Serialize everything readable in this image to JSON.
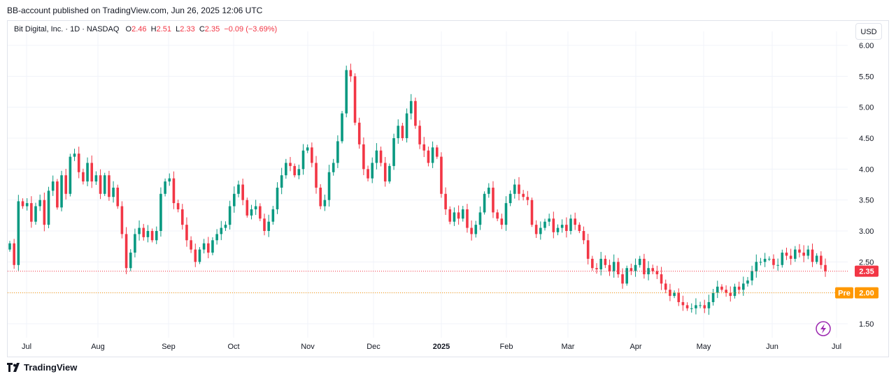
{
  "header": {
    "published": "BB-account published on TradingView.com, Jun 26, 2025 12:06 UTC"
  },
  "legend": {
    "symbol": "Bit Digital, Inc. · 1D · NASDAQ",
    "o_label": "O",
    "o_value": "2.46",
    "h_label": "H",
    "h_value": "2.51",
    "l_label": "L",
    "l_value": "2.33",
    "c_label": "C",
    "c_value": "2.35",
    "change": "−0.09 (−3.69%)"
  },
  "toolbar": {
    "currency": "USD"
  },
  "footer": {
    "brand": "TradingView"
  },
  "colors": {
    "up": "#089981",
    "down": "#f23645",
    "pre": "#ff9800",
    "grid": "#f0f3fa"
  },
  "chart_data": {
    "type": "candlestick",
    "y_axis": {
      "side": "right",
      "ticks": [
        1.5,
        2.0,
        2.5,
        3.0,
        3.5,
        4.0,
        4.5,
        5.0,
        5.5,
        6.0
      ],
      "tick_labels": [
        "1.50",
        "2.00",
        "2.50",
        "3.00",
        "3.50",
        "4.00",
        "4.50",
        "5.00",
        "5.50",
        "6.00"
      ],
      "range": [
        1.3,
        6.3
      ]
    },
    "x_axis": {
      "labels": [
        "Jul",
        "Aug",
        "Sep",
        "Oct",
        "Nov",
        "Dec",
        "2025",
        "Feb",
        "Mar",
        "Apr",
        "May",
        "Jun",
        "Jul"
      ],
      "bold": [
        "2025"
      ]
    },
    "last_price": {
      "value": 2.35,
      "label": "2.35"
    },
    "pre_market": {
      "value": 2.0,
      "tag": "Pre",
      "label": "2.00"
    },
    "closes": [
      2.8,
      2.45,
      3.48,
      3.4,
      3.45,
      3.15,
      3.4,
      3.5,
      3.1,
      3.65,
      3.8,
      3.38,
      3.9,
      3.6,
      4.2,
      4.25,
      3.95,
      3.8,
      4.1,
      3.8,
      3.9,
      3.6,
      3.9,
      3.55,
      3.7,
      3.4,
      2.95,
      2.4,
      2.65,
      2.95,
      3.05,
      2.9,
      3.0,
      2.85,
      3.0,
      3.6,
      3.8,
      3.85,
      3.45,
      3.35,
      3.1,
      2.85,
      2.7,
      2.5,
      2.7,
      2.8,
      2.65,
      2.85,
      2.95,
      3.05,
      3.1,
      3.4,
      3.6,
      3.75,
      3.5,
      3.25,
      3.35,
      3.4,
      3.2,
      3.0,
      3.15,
      3.35,
      3.7,
      3.9,
      4.1,
      4.05,
      3.9,
      4.0,
      4.3,
      4.35,
      4.1,
      3.7,
      3.4,
      3.5,
      3.95,
      4.1,
      4.45,
      4.9,
      5.6,
      5.5,
      4.75,
      4.4,
      4.0,
      3.85,
      4.1,
      4.3,
      4.1,
      3.8,
      4.05,
      4.5,
      4.7,
      4.5,
      4.9,
      5.1,
      4.7,
      4.4,
      4.3,
      4.1,
      4.35,
      4.2,
      3.6,
      3.35,
      3.15,
      3.3,
      3.2,
      3.35,
      3.05,
      2.95,
      3.1,
      3.3,
      3.6,
      3.7,
      3.3,
      3.2,
      3.1,
      3.45,
      3.6,
      3.75,
      3.6,
      3.55,
      3.5,
      3.1,
      2.95,
      3.05,
      3.15,
      3.2,
      2.98,
      3.05,
      3.1,
      3.0,
      3.2,
      3.1,
      3.0,
      2.85,
      2.55,
      2.4,
      2.38,
      2.55,
      2.45,
      2.35,
      2.5,
      2.3,
      2.15,
      2.4,
      2.35,
      2.45,
      2.55,
      2.3,
      2.4,
      2.35,
      2.3,
      2.15,
      2.05,
      1.95,
      2.0,
      1.85,
      1.8,
      1.75,
      1.75,
      1.8,
      1.8,
      1.75,
      1.85,
      2.0,
      2.1,
      2.05,
      2.0,
      1.95,
      2.1,
      2.05,
      2.15,
      2.2,
      2.35,
      2.5,
      2.5,
      2.55,
      2.55,
      2.45,
      2.45,
      2.65,
      2.6,
      2.55,
      2.7,
      2.65,
      2.6,
      2.7,
      2.5,
      2.6,
      2.45,
      2.35
    ]
  }
}
